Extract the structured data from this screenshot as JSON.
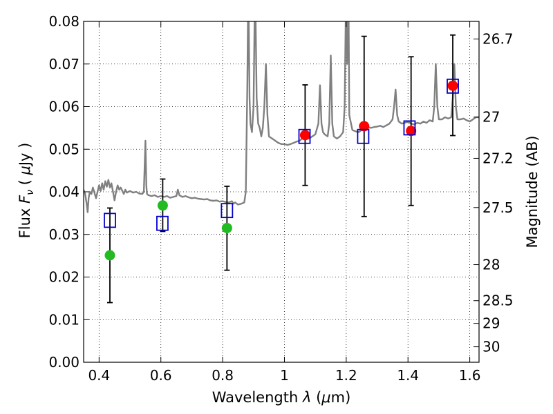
{
  "chart_data": {
    "type": "scatter",
    "xlabel": "Wavelength  λ (μm)",
    "ylabel": "Flux  F_ν  ( μJy )",
    "ylabel_parts": {
      "pre": "Flux  ",
      "var": "F",
      "sub": "ν",
      "mid": "  ( ",
      "unit_var": "μ",
      "unit": "Jy )"
    },
    "xlabel_parts": {
      "pre": "Wavelength  ",
      "var": "λ",
      "mid": " (",
      "unit_var": "μ",
      "unit": "m)"
    },
    "y2label": "Magnitude (AB)",
    "xlim": [
      0.35,
      1.63
    ],
    "ylim": [
      0.0,
      0.08
    ],
    "grid": true,
    "x_ticks": [
      {
        "v": 0.4,
        "label": "0.4"
      },
      {
        "v": 0.6,
        "label": "0.6"
      },
      {
        "v": 0.8,
        "label": "0.8"
      },
      {
        "v": 1.0,
        "label": "1"
      },
      {
        "v": 1.2,
        "label": "1.2"
      },
      {
        "v": 1.4,
        "label": "1.4"
      },
      {
        "v": 1.6,
        "label": "1.6"
      }
    ],
    "y_ticks": [
      {
        "v": 0.0,
        "label": "0.00"
      },
      {
        "v": 0.01,
        "label": "0.01"
      },
      {
        "v": 0.02,
        "label": "0.02"
      },
      {
        "v": 0.03,
        "label": "0.03"
      },
      {
        "v": 0.04,
        "label": "0.04"
      },
      {
        "v": 0.05,
        "label": "0.05"
      },
      {
        "v": 0.06,
        "label": "0.06"
      },
      {
        "v": 0.07,
        "label": "0.07"
      },
      {
        "v": 0.08,
        "label": "0.08"
      }
    ],
    "mag_ticks": [
      {
        "mag": 26.7,
        "label": "26.7"
      },
      {
        "mag": 27,
        "label": "27"
      },
      {
        "mag": 27.2,
        "label": "27.2"
      },
      {
        "mag": 27.5,
        "label": "27.5"
      },
      {
        "mag": 28,
        "label": "28"
      },
      {
        "mag": 28.5,
        "label": "28.5"
      },
      {
        "mag": 29,
        "label": "29"
      },
      {
        "mag": 30,
        "label": "30"
      }
    ],
    "template_spectrum": {
      "color": "#808080",
      "points": [
        [
          0.35,
          0.0405
        ],
        [
          0.355,
          0.0395
        ],
        [
          0.36,
          0.037
        ],
        [
          0.363,
          0.0352
        ],
        [
          0.366,
          0.0385
        ],
        [
          0.37,
          0.04
        ],
        [
          0.375,
          0.0395
        ],
        [
          0.38,
          0.041
        ],
        [
          0.385,
          0.0398
        ],
        [
          0.39,
          0.0385
        ],
        [
          0.395,
          0.04
        ],
        [
          0.4,
          0.0415
        ],
        [
          0.405,
          0.0402
        ],
        [
          0.41,
          0.042
        ],
        [
          0.415,
          0.0405
        ],
        [
          0.42,
          0.0425
        ],
        [
          0.425,
          0.0412
        ],
        [
          0.43,
          0.0428
        ],
        [
          0.435,
          0.041
        ],
        [
          0.44,
          0.042
        ],
        [
          0.445,
          0.04
        ],
        [
          0.45,
          0.038
        ],
        [
          0.455,
          0.04
        ],
        [
          0.46,
          0.0415
        ],
        [
          0.465,
          0.0405
        ],
        [
          0.47,
          0.041
        ],
        [
          0.48,
          0.0395
        ],
        [
          0.485,
          0.0405
        ],
        [
          0.49,
          0.0398
        ],
        [
          0.5,
          0.0402
        ],
        [
          0.51,
          0.0398
        ],
        [
          0.52,
          0.04
        ],
        [
          0.53,
          0.0396
        ],
        [
          0.54,
          0.0395
        ],
        [
          0.545,
          0.04
        ],
        [
          0.55,
          0.052
        ],
        [
          0.553,
          0.0415
        ],
        [
          0.555,
          0.0395
        ],
        [
          0.56,
          0.0392
        ],
        [
          0.57,
          0.039
        ],
        [
          0.58,
          0.0392
        ],
        [
          0.59,
          0.0388
        ],
        [
          0.6,
          0.039
        ],
        [
          0.61,
          0.0388
        ],
        [
          0.62,
          0.039
        ],
        [
          0.63,
          0.0386
        ],
        [
          0.64,
          0.0388
        ],
        [
          0.65,
          0.039
        ],
        [
          0.655,
          0.0405
        ],
        [
          0.66,
          0.0392
        ],
        [
          0.67,
          0.0388
        ],
        [
          0.68,
          0.039
        ],
        [
          0.69,
          0.0387
        ],
        [
          0.7,
          0.0385
        ],
        [
          0.71,
          0.0386
        ],
        [
          0.72,
          0.0384
        ],
        [
          0.73,
          0.0383
        ],
        [
          0.74,
          0.0382
        ],
        [
          0.75,
          0.0383
        ],
        [
          0.76,
          0.038
        ],
        [
          0.77,
          0.0379
        ],
        [
          0.78,
          0.038
        ],
        [
          0.79,
          0.0377
        ],
        [
          0.8,
          0.0378
        ],
        [
          0.81,
          0.0376
        ],
        [
          0.82,
          0.0375
        ],
        [
          0.83,
          0.0378
        ],
        [
          0.835,
          0.0372
        ],
        [
          0.84,
          0.0375
        ],
        [
          0.85,
          0.037
        ],
        [
          0.86,
          0.0372
        ],
        [
          0.87,
          0.0375
        ],
        [
          0.875,
          0.04
        ],
        [
          0.88,
          0.065
        ],
        [
          0.883,
          0.09
        ],
        [
          0.887,
          0.062
        ],
        [
          0.89,
          0.056
        ],
        [
          0.895,
          0.054
        ],
        [
          0.9,
          0.06
        ],
        [
          0.905,
          0.09
        ],
        [
          0.91,
          0.062
        ],
        [
          0.915,
          0.056
        ],
        [
          0.92,
          0.055
        ],
        [
          0.925,
          0.053
        ],
        [
          0.93,
          0.055
        ],
        [
          0.935,
          0.06
        ],
        [
          0.94,
          0.07
        ],
        [
          0.945,
          0.058
        ],
        [
          0.95,
          0.053
        ],
        [
          0.96,
          0.0525
        ],
        [
          0.97,
          0.052
        ],
        [
          0.98,
          0.0515
        ],
        [
          0.99,
          0.0512
        ],
        [
          1.0,
          0.0512
        ],
        [
          1.01,
          0.051
        ],
        [
          1.02,
          0.0512
        ],
        [
          1.03,
          0.0515
        ],
        [
          1.04,
          0.0518
        ],
        [
          1.05,
          0.052
        ],
        [
          1.06,
          0.0528
        ],
        [
          1.065,
          0.0535
        ],
        [
          1.07,
          0.053
        ],
        [
          1.08,
          0.0525
        ],
        [
          1.09,
          0.053
        ],
        [
          1.1,
          0.0535
        ],
        [
          1.11,
          0.056
        ],
        [
          1.115,
          0.065
        ],
        [
          1.12,
          0.056
        ],
        [
          1.125,
          0.054
        ],
        [
          1.13,
          0.0535
        ],
        [
          1.14,
          0.053
        ],
        [
          1.145,
          0.056
        ],
        [
          1.15,
          0.072
        ],
        [
          1.155,
          0.056
        ],
        [
          1.16,
          0.053
        ],
        [
          1.17,
          0.0525
        ],
        [
          1.18,
          0.053
        ],
        [
          1.19,
          0.054
        ],
        [
          1.195,
          0.06
        ],
        [
          1.2,
          0.09
        ],
        [
          1.203,
          0.07
        ],
        [
          1.207,
          0.09
        ],
        [
          1.21,
          0.058
        ],
        [
          1.22,
          0.0545
        ],
        [
          1.23,
          0.0542
        ],
        [
          1.24,
          0.054
        ],
        [
          1.25,
          0.0545
        ],
        [
          1.26,
          0.055
        ],
        [
          1.27,
          0.0552
        ],
        [
          1.28,
          0.055
        ],
        [
          1.29,
          0.0552
        ],
        [
          1.3,
          0.0553
        ],
        [
          1.31,
          0.0555
        ],
        [
          1.32,
          0.0552
        ],
        [
          1.33,
          0.0556
        ],
        [
          1.34,
          0.056
        ],
        [
          1.35,
          0.057
        ],
        [
          1.355,
          0.06
        ],
        [
          1.36,
          0.064
        ],
        [
          1.365,
          0.058
        ],
        [
          1.37,
          0.0565
        ],
        [
          1.38,
          0.056
        ],
        [
          1.39,
          0.0562
        ],
        [
          1.4,
          0.0565
        ],
        [
          1.41,
          0.056
        ],
        [
          1.42,
          0.0558
        ],
        [
          1.43,
          0.0562
        ],
        [
          1.44,
          0.056
        ],
        [
          1.45,
          0.0565
        ],
        [
          1.46,
          0.0562
        ],
        [
          1.47,
          0.0568
        ],
        [
          1.48,
          0.0565
        ],
        [
          1.485,
          0.06
        ],
        [
          1.49,
          0.07
        ],
        [
          1.495,
          0.06
        ],
        [
          1.5,
          0.057
        ],
        [
          1.51,
          0.057
        ],
        [
          1.52,
          0.0575
        ],
        [
          1.53,
          0.0572
        ],
        [
          1.54,
          0.0575
        ],
        [
          1.545,
          0.062
        ],
        [
          1.55,
          0.07
        ],
        [
          1.555,
          0.06
        ],
        [
          1.56,
          0.057
        ],
        [
          1.57,
          0.057
        ],
        [
          1.58,
          0.0572
        ],
        [
          1.59,
          0.0568
        ],
        [
          1.6,
          0.0565
        ],
        [
          1.61,
          0.057
        ],
        [
          1.62,
          0.0575
        ],
        [
          1.63,
          0.0575
        ]
      ]
    },
    "model_points": {
      "color": "#0000cc",
      "marker": "open-square",
      "points": [
        [
          0.435,
          0.0333
        ],
        [
          0.605,
          0.0326
        ],
        [
          0.814,
          0.0356
        ],
        [
          1.065,
          0.053
        ],
        [
          1.255,
          0.053
        ],
        [
          1.405,
          0.055
        ],
        [
          1.545,
          0.0648
        ]
      ]
    },
    "observed_optical": {
      "color": "#22bb22",
      "marker": "filled-circle",
      "points": [
        [
          0.435,
          0.0251
        ],
        [
          0.606,
          0.0368
        ],
        [
          0.814,
          0.0315
        ]
      ]
    },
    "observed_nir": {
      "color": "#ff0000",
      "marker": "filled-circle",
      "points": [
        [
          1.067,
          0.0533
        ],
        [
          1.258,
          0.0554
        ],
        [
          1.41,
          0.0543
        ],
        [
          1.545,
          0.0649
        ]
      ]
    },
    "error_bars": [
      {
        "x": 0.435,
        "low": 0.014,
        "high": 0.0362
      },
      {
        "x": 0.606,
        "low": 0.0307,
        "high": 0.043
      },
      {
        "x": 0.814,
        "low": 0.0216,
        "high": 0.0413
      },
      {
        "x": 1.067,
        "low": 0.0415,
        "high": 0.0651
      },
      {
        "x": 1.258,
        "low": 0.0342,
        "high": 0.0765
      },
      {
        "x": 1.41,
        "low": 0.0368,
        "high": 0.0717
      },
      {
        "x": 1.545,
        "low": 0.0532,
        "high": 0.0768
      }
    ]
  }
}
